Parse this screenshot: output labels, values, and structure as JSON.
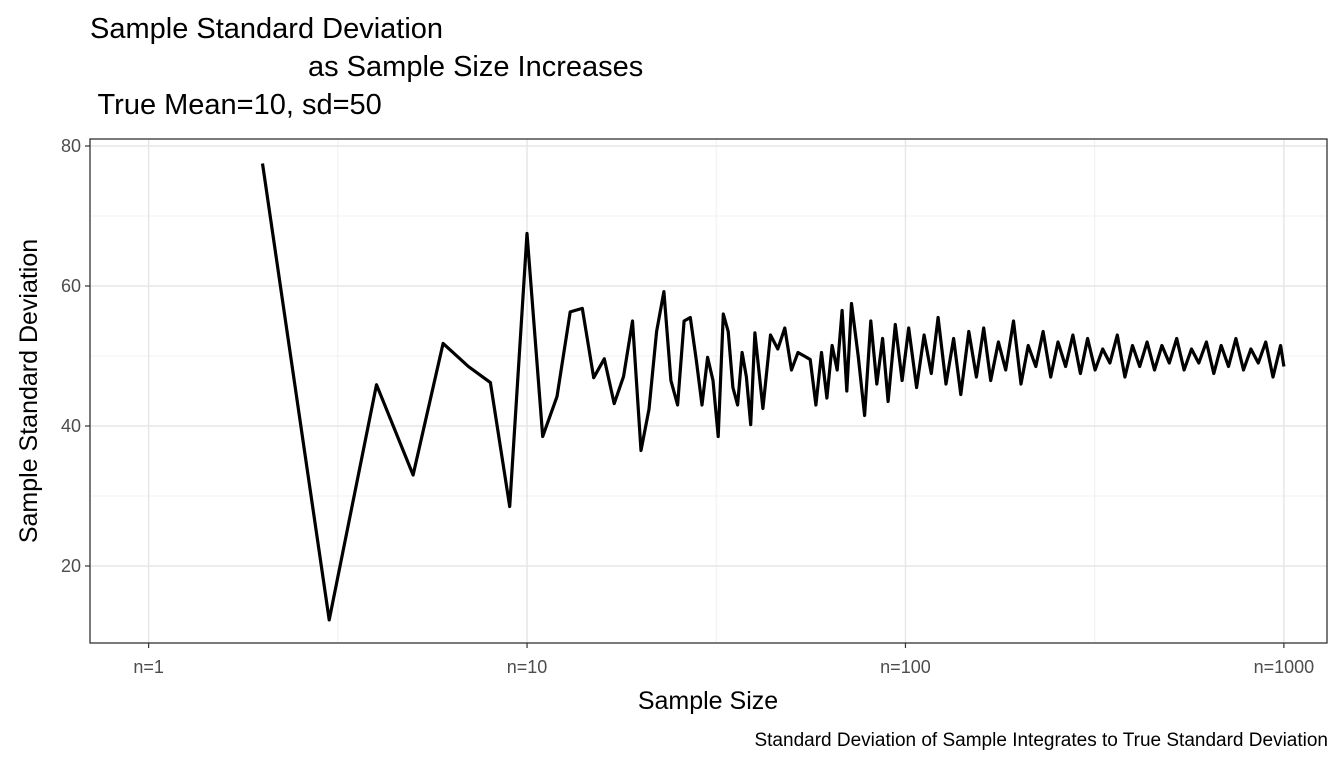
{
  "chart_data": {
    "type": "line",
    "title_lines": [
      "Sample Standard Deviation",
      "as Sample Size Increases",
      " True Mean=10, sd=50"
    ],
    "xlabel": "Sample Size",
    "ylabel": "Sample Standard Deviation",
    "caption": "Standard Deviation of Sample Integrates to True Standard Deviation",
    "x_scale": "log10",
    "xlim": [
      0.7,
      1300
    ],
    "ylim": [
      9,
      81
    ],
    "x_ticks": [
      {
        "value": 1,
        "label": "n=1"
      },
      {
        "value": 10,
        "label": "n=10"
      },
      {
        "value": 100,
        "label": "n=100"
      },
      {
        "value": 1000,
        "label": "n=1000"
      }
    ],
    "y_ticks": [
      20,
      40,
      60,
      80
    ],
    "grid": true,
    "line_color": "#000000",
    "series": [
      {
        "x": [
          2,
          3,
          4,
          5,
          6,
          7,
          8,
          9,
          10,
          11,
          12,
          13,
          14,
          15,
          16,
          17,
          18,
          19,
          20,
          21,
          22,
          23,
          24,
          25,
          26,
          27,
          28,
          29,
          30,
          31,
          32,
          33,
          34,
          35,
          36,
          37,
          38,
          39,
          40,
          42,
          44,
          46,
          48,
          50,
          52,
          54,
          56,
          58,
          60,
          62,
          64,
          66,
          68,
          70,
          72,
          75,
          78,
          81,
          84,
          87,
          90,
          94,
          98,
          102,
          107,
          112,
          117,
          122,
          128,
          134,
          140,
          147,
          154,
          161,
          168,
          176,
          184,
          193,
          202,
          211,
          221,
          231,
          242,
          253,
          265,
          277,
          290,
          303,
          317,
          332,
          347,
          363,
          380,
          398,
          416,
          435,
          455,
          476,
          498,
          521,
          545,
          570,
          596,
          624,
          653,
          683,
          714,
          747,
          782,
          818,
          856,
          895,
          936,
          980,
          1000
        ],
        "y": [
          77.5,
          12.3,
          45.9,
          33.0,
          51.8,
          48.5,
          46.2,
          28.5,
          67.5,
          38.5,
          44.2,
          56.3,
          56.8,
          46.9,
          49.6,
          43.2,
          47.1,
          55.0,
          36.5,
          42.4,
          53.5,
          59.2,
          46.5,
          43.0,
          55.0,
          55.5,
          49.4,
          43.0,
          49.8,
          46.5,
          38.5,
          56.0,
          53.5,
          45.5,
          43.0,
          50.5,
          47.0,
          40.2,
          53.3,
          42.5,
          53.0,
          51.0,
          54.0,
          48.0,
          50.5,
          50.0,
          49.5,
          43.0,
          50.5,
          44.0,
          51.5,
          48.0,
          56.5,
          45.0,
          57.5,
          50.0,
          41.5,
          55.0,
          46.0,
          52.5,
          43.5,
          54.5,
          46.5,
          54.0,
          45.5,
          53.0,
          47.5,
          55.5,
          46.0,
          52.5,
          44.5,
          53.5,
          47.0,
          54.0,
          46.5,
          52.0,
          48.0,
          55.0,
          46.0,
          51.5,
          48.5,
          53.5,
          47.0,
          52.0,
          48.5,
          53.0,
          47.5,
          52.5,
          48.0,
          51.0,
          49.0,
          53.0,
          47.0,
          51.5,
          48.5,
          52.0,
          48.0,
          51.5,
          49.0,
          52.5,
          48.0,
          51.0,
          49.0,
          52.0,
          47.5,
          51.5,
          48.5,
          52.5,
          48.0,
          51.0,
          49.0,
          52.0,
          47.0,
          51.5,
          48.5
        ]
      }
    ]
  }
}
